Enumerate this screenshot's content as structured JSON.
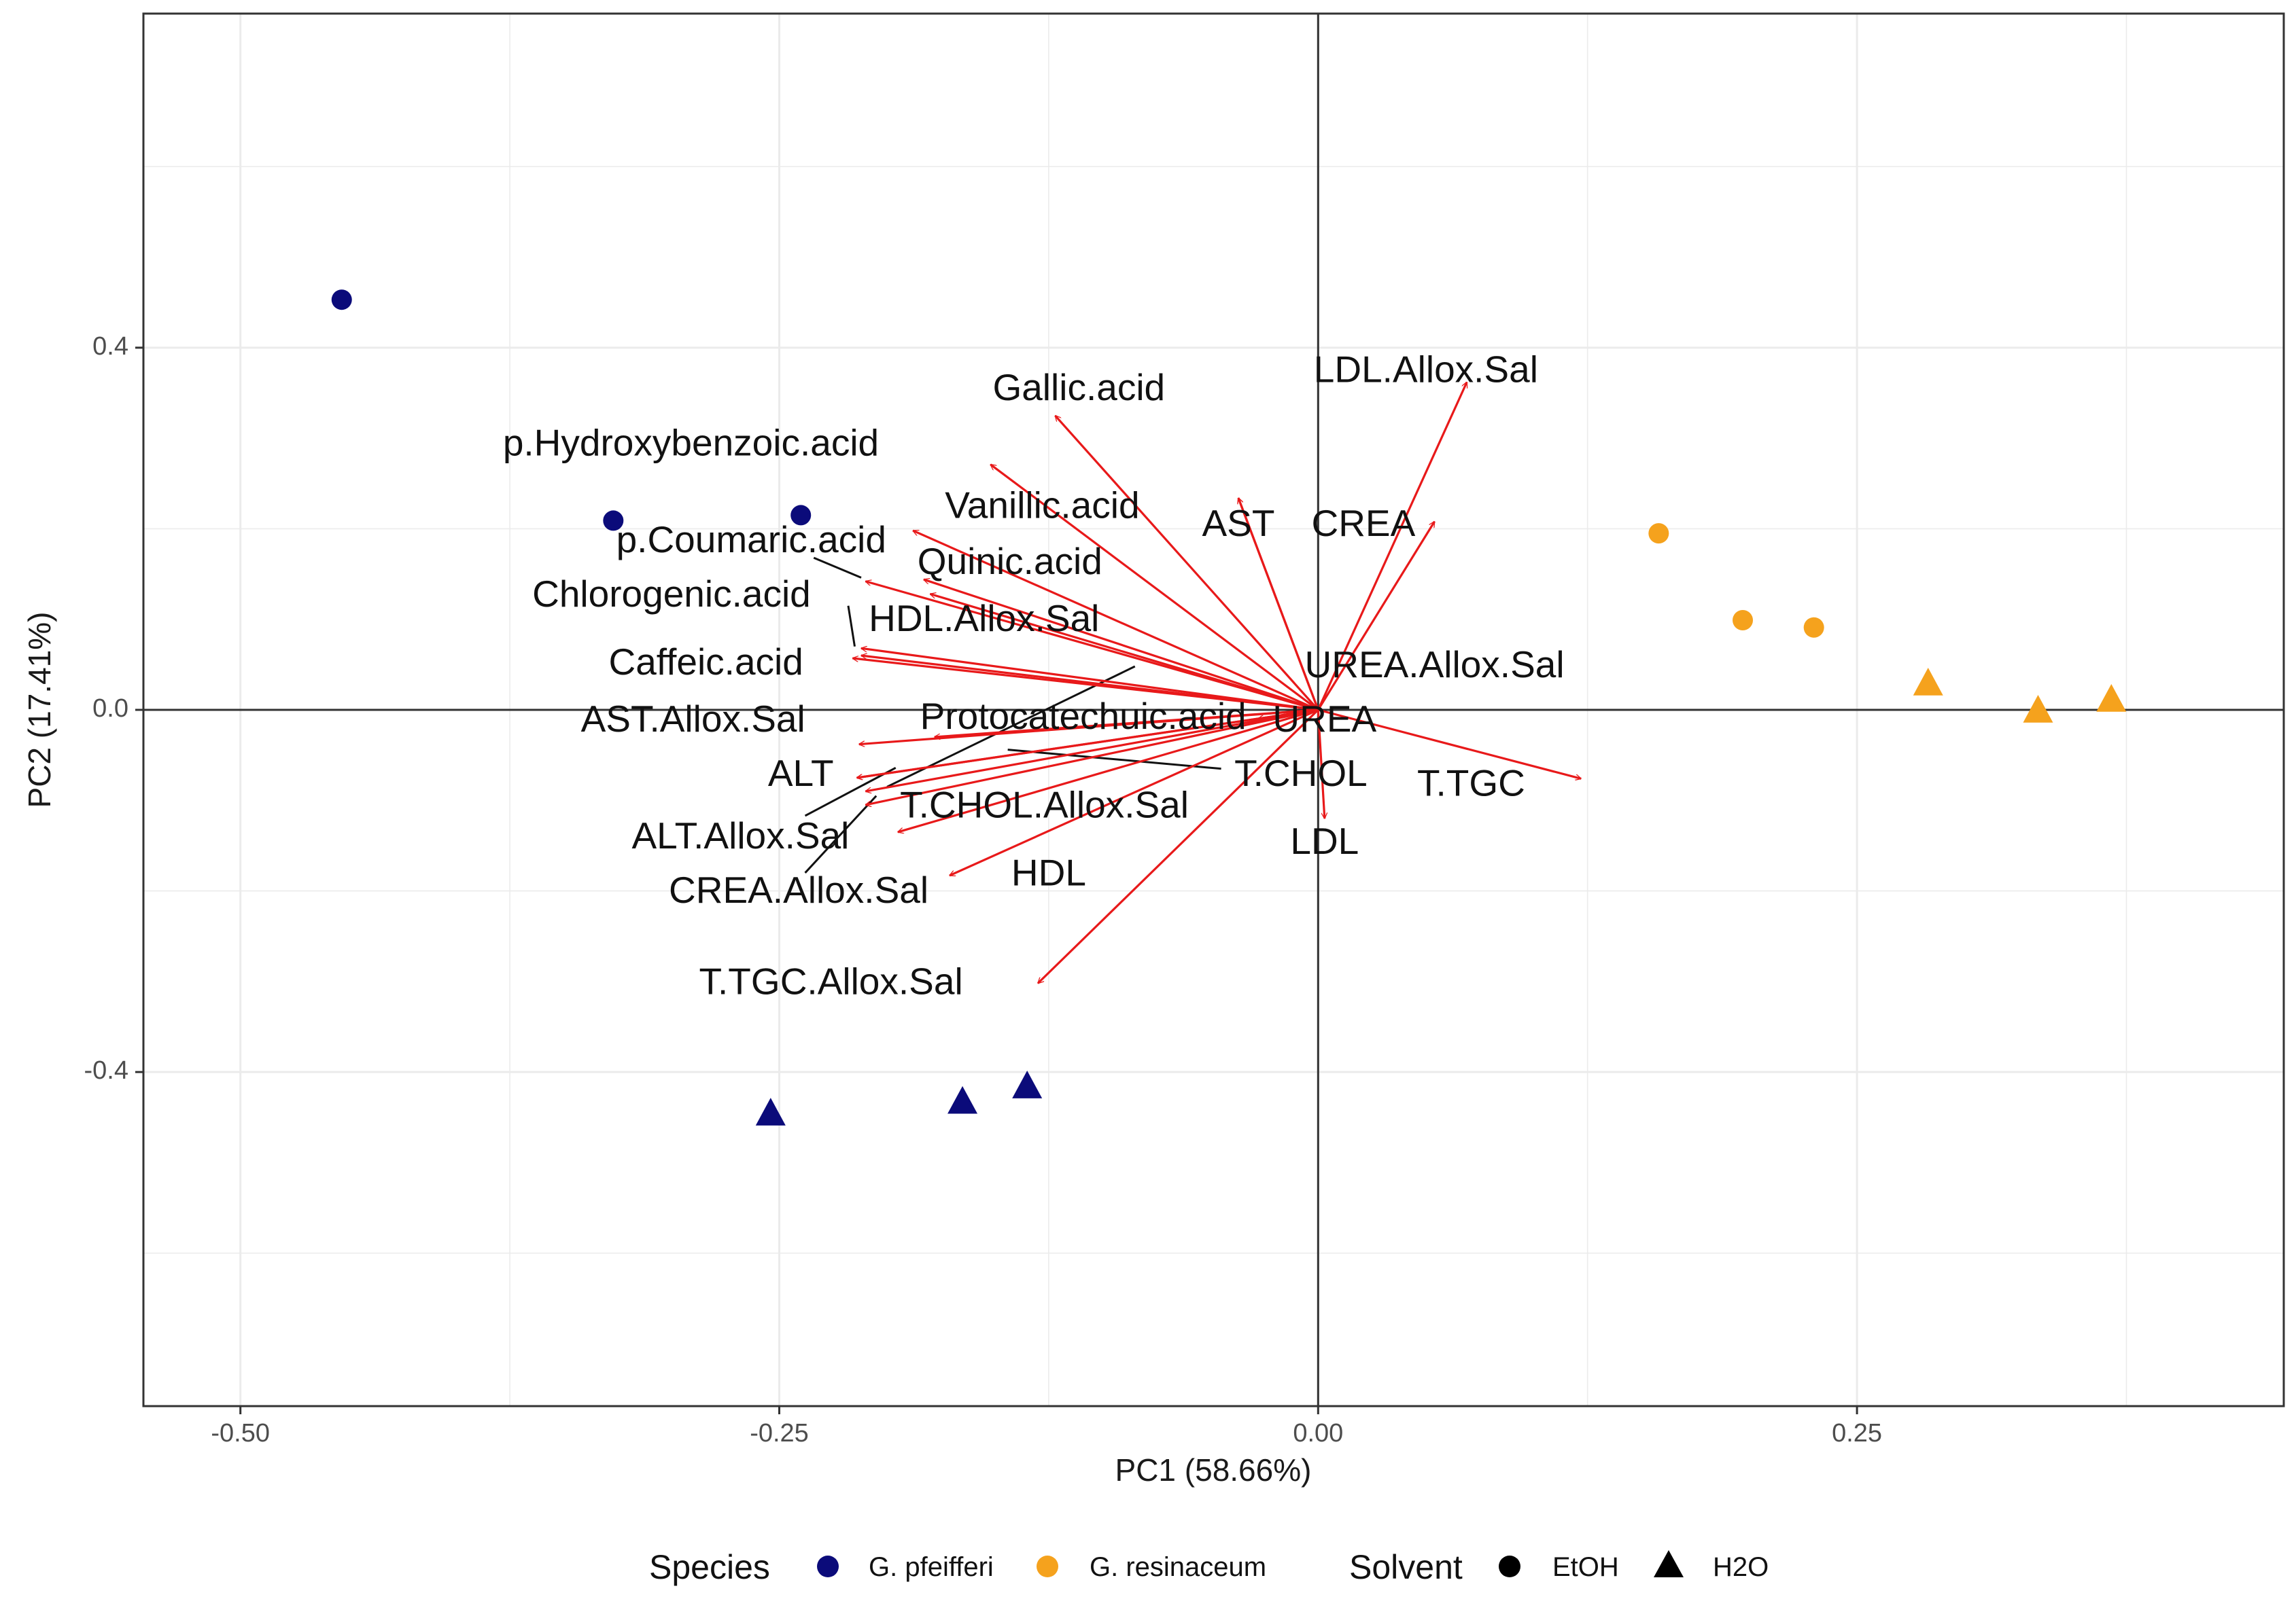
{
  "chart_data": {
    "type": "scatter",
    "subtype": "pca-biplot",
    "xlabel": "PC1 (58.66%)",
    "ylabel": "PC2 (17.41%)",
    "xlim": [
      -0.545,
      0.448
    ],
    "ylim": [
      -0.769,
      0.769
    ],
    "x_ticks": [
      -0.5,
      -0.25,
      0.0,
      0.25
    ],
    "x_tick_labels": [
      "-0.50",
      "-0.25",
      "0.00",
      "0.25"
    ],
    "y_ticks": [
      -0.4,
      0.0,
      0.4
    ],
    "y_tick_labels": [
      "-0.4",
      "0.0",
      "0.4"
    ],
    "grid": true,
    "zero_lines": true,
    "colors": {
      "G. pfeifferi": "#0b0b7a",
      "G. resinaceum": "#f5a21d",
      "arrow": "#e8191a",
      "grid": "#ebebeb",
      "panel_border": "#333333"
    },
    "points": [
      {
        "x": -0.453,
        "y": 0.453,
        "species": "G. pfeifferi",
        "solvent": "EtOH"
      },
      {
        "x": -0.327,
        "y": 0.209,
        "species": "G. pfeifferi",
        "solvent": "EtOH"
      },
      {
        "x": -0.24,
        "y": 0.215,
        "species": "G. pfeifferi",
        "solvent": "EtOH"
      },
      {
        "x": 0.158,
        "y": 0.195,
        "species": "G. resinaceum",
        "solvent": "EtOH"
      },
      {
        "x": 0.197,
        "y": 0.099,
        "species": "G. resinaceum",
        "solvent": "EtOH"
      },
      {
        "x": 0.23,
        "y": 0.091,
        "species": "G. resinaceum",
        "solvent": "EtOH"
      },
      {
        "x": -0.254,
        "y": -0.445,
        "species": "G. pfeifferi",
        "solvent": "H2O"
      },
      {
        "x": -0.165,
        "y": -0.432,
        "species": "G. pfeifferi",
        "solvent": "H2O"
      },
      {
        "x": -0.135,
        "y": -0.415,
        "species": "G. pfeifferi",
        "solvent": "H2O"
      },
      {
        "x": 0.283,
        "y": 0.03,
        "species": "G. resinaceum",
        "solvent": "H2O"
      },
      {
        "x": 0.334,
        "y": 0.0,
        "species": "G. resinaceum",
        "solvent": "H2O"
      },
      {
        "x": 0.368,
        "y": 0.012,
        "species": "G. resinaceum",
        "solvent": "H2O"
      }
    ],
    "loadings": [
      {
        "name": "Gallic.acid",
        "x": -0.122,
        "y": 0.325,
        "lx": -0.111,
        "ly": 0.353,
        "leader": false
      },
      {
        "name": "LDL.Allox.Sal",
        "x": 0.069,
        "y": 0.362,
        "lx": 0.05,
        "ly": 0.373,
        "leader": false
      },
      {
        "name": "p.Hydroxybenzoic.acid",
        "x": -0.152,
        "y": 0.271,
        "lx": -0.291,
        "ly": 0.292,
        "leader": false
      },
      {
        "name": "Vanillic.acid",
        "x": -0.037,
        "y": 0.234,
        "lx": -0.128,
        "ly": 0.223,
        "leader": false
      },
      {
        "name": "AST",
        "x": -0.037,
        "y": 0.234,
        "lx": -0.037,
        "ly": 0.203,
        "leader": false
      },
      {
        "name": "CREA",
        "x": 0.054,
        "y": 0.208,
        "lx": 0.021,
        "ly": 0.203,
        "leader": false
      },
      {
        "name": "p.Coumaric.acid",
        "x": -0.188,
        "y": 0.198,
        "lx": -0.263,
        "ly": 0.185,
        "leader": true,
        "lead": [
          -0.234,
          0.168,
          -0.212,
          0.146
        ]
      },
      {
        "name": "Quinic.acid",
        "x": -0.183,
        "y": 0.144,
        "lx": -0.143,
        "ly": 0.161,
        "leader": false
      },
      {
        "name": "Chlorogenic.acid",
        "x": -0.21,
        "y": 0.142,
        "lx": -0.3,
        "ly": 0.125,
        "leader": true,
        "lead": [
          -0.218,
          0.115,
          -0.215,
          0.07
        ]
      },
      {
        "name": "HDL.Allox.Sal",
        "x": -0.18,
        "y": 0.128,
        "lx": -0.155,
        "ly": 0.098,
        "leader": false
      },
      {
        "name": "Caffeic.acid",
        "x": -0.212,
        "y": 0.068,
        "lx": -0.284,
        "ly": 0.05,
        "leader": false
      },
      {
        "name": "Caffeic.acid.2",
        "x": -0.212,
        "y": 0.06,
        "lx": 0,
        "ly": 0,
        "hidden_label": true
      },
      {
        "name": "UREA.Allox.Sal",
        "x": -0.216,
        "y": 0.057,
        "lx": 0.054,
        "ly": 0.047,
        "leader": true,
        "lead": [
          -0.085,
          0.048,
          -0.2,
          -0.085
        ]
      },
      {
        "name": "AST.Allox.Sal",
        "x": -0.213,
        "y": -0.038,
        "lx": -0.29,
        "ly": -0.013,
        "leader": false
      },
      {
        "name": "Protocatechuic.acid",
        "x": -0.178,
        "y": -0.03,
        "lx": -0.109,
        "ly": -0.01,
        "leader": false
      },
      {
        "name": "UREA",
        "x": -0.028,
        "y": -0.01,
        "lx": 0.003,
        "ly": -0.013,
        "leader": false
      },
      {
        "name": "T.CHOL",
        "x": -0.214,
        "y": -0.075,
        "lx": -0.008,
        "ly": -0.073,
        "leader": true,
        "lead": [
          -0.045,
          -0.065,
          -0.144,
          -0.044
        ]
      },
      {
        "name": "ALT",
        "x": -0.214,
        "y": -0.075,
        "lx": -0.24,
        "ly": -0.073,
        "leader": false
      },
      {
        "name": "T.CHOL.Allox.Sal",
        "x": -0.21,
        "y": -0.09,
        "lx": -0.127,
        "ly": -0.108,
        "leader": false
      },
      {
        "name": "ALT.Allox.Sal",
        "x": -0.21,
        "y": -0.105,
        "lx": -0.268,
        "ly": -0.142,
        "leader": true,
        "lead": [
          -0.238,
          -0.117,
          -0.196,
          -0.064
        ]
      },
      {
        "name": "CREA.Allox.Sal",
        "x": -0.195,
        "y": -0.135,
        "lx": -0.241,
        "ly": -0.202,
        "leader": true,
        "lead": [
          -0.238,
          -0.18,
          -0.205,
          -0.095
        ]
      },
      {
        "name": "LDL",
        "x": 0.003,
        "y": -0.12,
        "lx": 0.003,
        "ly": -0.148,
        "leader": false
      },
      {
        "name": "T.TGC",
        "x": 0.122,
        "y": -0.076,
        "lx": 0.071,
        "ly": -0.084,
        "leader": false
      },
      {
        "name": "HDL",
        "x": -0.171,
        "y": -0.183,
        "lx": -0.125,
        "ly": -0.183,
        "leader": false
      },
      {
        "name": "T.TGC.Allox.Sal",
        "x": -0.13,
        "y": -0.302,
        "lx": -0.226,
        "ly": -0.303,
        "leader": false
      }
    ],
    "legend": {
      "placement": "bottom",
      "species_title": "Species",
      "species": [
        "G. pfeifferi",
        "G. resinaceum"
      ],
      "solvent_title": "Solvent",
      "solvent": [
        "EtOH",
        "H2O"
      ]
    }
  }
}
